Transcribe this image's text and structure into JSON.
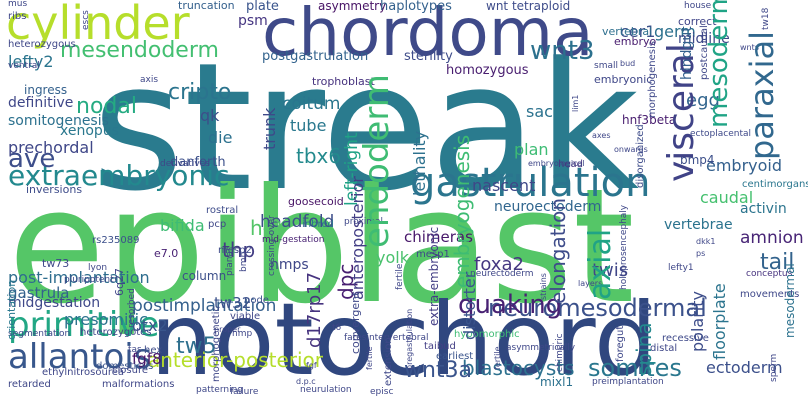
{
  "words": [
    {
      "text": "streak",
      "color": "#2a7b8e"
    },
    {
      "text": "epiblast",
      "color": "#55c667"
    },
    {
      "text": "notochord",
      "color": "#30477f"
    },
    {
      "text": "chordoma",
      "color": "#3f4a89"
    },
    {
      "text": "cylinder",
      "color": "#b6de2b"
    },
    {
      "text": "gastrulation",
      "color": "#2b758e"
    },
    {
      "text": "primitive",
      "color": "#22a784"
    },
    {
      "text": "allantois",
      "color": "#38578c"
    },
    {
      "text": "extraembryonic",
      "color": "#23898e"
    },
    {
      "text": "neuromesodermal",
      "color": "#3b518b"
    },
    {
      "text": "mesendoderm",
      "color": "#43bf71"
    },
    {
      "text": "visceral",
      "color": "#404387"
    },
    {
      "text": "endoderm",
      "color": "#3fbc73"
    },
    {
      "text": "wnt3",
      "color": "#2c718e"
    },
    {
      "text": "axial",
      "color": "#20a386"
    },
    {
      "text": "ave",
      "color": "#3d4e8a"
    },
    {
      "text": "nodal",
      "color": "#25ab82"
    },
    {
      "text": "paraxial",
      "color": "#31688e"
    },
    {
      "text": "mesoderm",
      "color": "#20a486"
    },
    {
      "text": "postimplantation",
      "color": "#35608d"
    },
    {
      "text": "somites",
      "color": "#2a778e"
    },
    {
      "text": "quaking",
      "color": "#482173"
    },
    {
      "text": "blastocysts",
      "color": "#2d718e"
    },
    {
      "text": "wnt3a",
      "color": "#3a548c"
    },
    {
      "text": "anterior-posterior",
      "color": "#b5de2b"
    },
    {
      "text": "tw5",
      "color": "#2e6f8e"
    },
    {
      "text": "post-implantation",
      "color": "#2e6d8e"
    },
    {
      "text": "embryogenesis",
      "color": "#3ebc73"
    },
    {
      "text": "elongation",
      "color": "#3e4c8a"
    },
    {
      "text": "cripto",
      "color": "#2b748e"
    },
    {
      "text": "tbx6",
      "color": "#238a8d"
    },
    {
      "text": "headfold",
      "color": "#3d4d8a"
    },
    {
      "text": "nascent",
      "color": "#3f4788"
    },
    {
      "text": "embryoid",
      "color": "#34608d"
    },
    {
      "text": "caudal",
      "color": "#45c06f"
    },
    {
      "text": "neuroectoderm",
      "color": "#31668e"
    },
    {
      "text": "chimeras",
      "color": "#48186a"
    },
    {
      "text": "vertebrae",
      "color": "#2b738e"
    },
    {
      "text": "amnion",
      "color": "#482576"
    },
    {
      "text": "tail",
      "color": "#33638d"
    },
    {
      "text": "ectoderm",
      "color": "#3c508b"
    },
    {
      "text": "spina",
      "color": "#23898e"
    },
    {
      "text": "twis",
      "color": "#404688"
    },
    {
      "text": "otx2",
      "color": "#39568c"
    },
    {
      "text": "midgestation",
      "color": "#3f4889"
    },
    {
      "text": "presomitic",
      "color": "#2c738e"
    },
    {
      "text": "gastrula",
      "color": "#34618d"
    },
    {
      "text": "foxa2",
      "color": "#453781"
    },
    {
      "text": "thp",
      "color": "#433d84"
    },
    {
      "text": "h-2",
      "color": "#54c568"
    },
    {
      "text": "dpc",
      "color": "#471e71"
    },
    {
      "text": "d17rp17",
      "color": "#46337f"
    },
    {
      "text": "tw32",
      "color": "#3b528b"
    },
    {
      "text": "fgf8",
      "color": "#481467"
    },
    {
      "text": "lethality",
      "color": "#2d718e"
    },
    {
      "text": "left-right",
      "color": "#20a386"
    },
    {
      "text": "anteroposterior",
      "color": "#433e85"
    },
    {
      "text": "coitum",
      "color": "#2a768e"
    },
    {
      "text": "plan",
      "color": "#3ebc74"
    },
    {
      "text": "sac",
      "color": "#2c728e"
    },
    {
      "text": "qk",
      "color": "#3c4f8a"
    },
    {
      "text": "die",
      "color": "#2c718e"
    },
    {
      "text": "trunk",
      "color": "#3e4989"
    },
    {
      "text": "tube",
      "color": "#2a788e"
    },
    {
      "text": "xenopus",
      "color": "#2a788e"
    },
    {
      "text": "prechordal",
      "color": "#3f4788"
    },
    {
      "text": "somitogenesis",
      "color": "#2c718e"
    },
    {
      "text": "definitive",
      "color": "#3f4788"
    },
    {
      "text": "lefty2",
      "color": "#2b758e"
    },
    {
      "text": "psm",
      "color": "#453581"
    },
    {
      "text": "plate",
      "color": "#3a548c"
    },
    {
      "text": "asymmetry",
      "color": "#471365"
    },
    {
      "text": "haplotypes",
      "color": "#34618d"
    },
    {
      "text": "wnt tetraploid",
      "color": "#3e4c8a"
    },
    {
      "text": "cer1",
      "color": "#3b528b"
    },
    {
      "text": "germ",
      "color": "#2c718e"
    },
    {
      "text": "egg",
      "color": "#32658e"
    },
    {
      "text": "hnf3beta",
      "color": "#481d6f"
    },
    {
      "text": "hindgut",
      "color": "#34618d"
    },
    {
      "text": "midline",
      "color": "#3e4989"
    },
    {
      "text": "column",
      "color": "#3c4f8a"
    },
    {
      "text": "yolk",
      "color": "#4ac16d"
    },
    {
      "text": "distorter",
      "color": "#3a548c"
    },
    {
      "text": "bifida",
      "color": "#3ebc74"
    },
    {
      "text": "polarity",
      "color": "#3d4d8a"
    },
    {
      "text": "floorplate",
      "color": "#2b748e"
    },
    {
      "text": "activin",
      "color": "#2b748e"
    },
    {
      "text": "mesodermal",
      "color": "#2c728e"
    },
    {
      "text": "nmps",
      "color": "#3f4788"
    },
    {
      "text": "ingress",
      "color": "#34618d"
    },
    {
      "text": "sterility",
      "color": "#3e4c8a"
    },
    {
      "text": "homozygous",
      "color": "#481d6f"
    },
    {
      "text": "postgastrulation",
      "color": "#33638d"
    },
    {
      "text": "truncation",
      "color": "#34608d"
    },
    {
      "text": "vertebral",
      "color": "#2e6f8e"
    },
    {
      "text": "correct",
      "color": "#404588"
    },
    {
      "text": "embryo",
      "color": "#481c6e"
    },
    {
      "text": "danforth",
      "color": "#3c508b"
    },
    {
      "text": "goosecoid",
      "color": "#471365"
    },
    {
      "text": "trophoblast",
      "color": "#46327e"
    },
    {
      "text": "rostral",
      "color": "#3e4c8a"
    },
    {
      "text": "mid-gestation",
      "color": "#482173"
    },
    {
      "text": "proximal",
      "color": "#3f4889"
    },
    {
      "text": "inbred",
      "color": "#2c718e"
    },
    {
      "text": "viable",
      "color": "#3f4788"
    },
    {
      "text": "mesp2",
      "color": "#3e4989"
    },
    {
      "text": "mesp1",
      "color": "#3f4788"
    },
    {
      "text": "convergent",
      "color": "#3f4889"
    },
    {
      "text": "extra-embryonic",
      "color": "#433e85"
    },
    {
      "text": "eomes",
      "color": "#3e4989"
    },
    {
      "text": "tw73",
      "color": "#3c508b"
    },
    {
      "text": "rs235089",
      "color": "#404588"
    },
    {
      "text": "6q27",
      "color": "#482173"
    },
    {
      "text": "e7.0",
      "color": "#3f4788"
    },
    {
      "text": "pcp",
      "color": "#3c508b"
    },
    {
      "text": "node",
      "color": "#46327e"
    },
    {
      "text": "head",
      "color": "#3c4f8a"
    },
    {
      "text": "bmp4",
      "color": "#2a768e"
    },
    {
      "text": "centimorgans",
      "color": "#3e4c8a"
    },
    {
      "text": "disorganized",
      "color": "#3f4889"
    },
    {
      "text": "morphogenesis",
      "color": "#3f4788"
    },
    {
      "text": "postcaudal",
      "color": "#3e4989"
    },
    {
      "text": "ectoplacental",
      "color": "#2a788e"
    },
    {
      "text": "orientation",
      "color": "#3f4788"
    },
    {
      "text": "heterozygotes",
      "color": "#3f4788"
    },
    {
      "text": "morphogenetic",
      "color": "#3f4889"
    },
    {
      "text": "extension",
      "color": "#433e85"
    },
    {
      "text": "taibud",
      "color": "#3a548c"
    },
    {
      "text": "earliest",
      "color": "#3ebc74"
    },
    {
      "text": "hypomorphic",
      "color": "#3f4889"
    },
    {
      "text": "foregut",
      "color": "#3f4788"
    },
    {
      "text": "distal",
      "color": "#3e4989"
    },
    {
      "text": "recessive",
      "color": "#3f4889"
    },
    {
      "text": "movements",
      "color": "#46327e"
    },
    {
      "text": "conceptus",
      "color": "#3e4c8a"
    },
    {
      "text": "hex",
      "color": "#3a548c"
    },
    {
      "text": "domesticus",
      "color": "#3f4788"
    },
    {
      "text": "closure",
      "color": "#3f4788"
    },
    {
      "text": "ethylnitrosourea",
      "color": "#3f4788"
    },
    {
      "text": "retarded",
      "color": "#3f4788"
    },
    {
      "text": "malformations",
      "color": "#3f4788"
    },
    {
      "text": "failure",
      "color": "#3f4889"
    },
    {
      "text": "patterning",
      "color": "#3f4788"
    },
    {
      "text": "neurulation",
      "color": "#3f4788"
    },
    {
      "text": "episc",
      "color": "#2c718e"
    },
    {
      "text": "mixl1",
      "color": "#3f4788"
    },
    {
      "text": "preimplantation",
      "color": "#3f4788"
    },
    {
      "text": "chimeric",
      "color": "#3f4788"
    },
    {
      "text": "resorbed",
      "color": "#3e4989"
    },
    {
      "text": "segmentation",
      "color": "#3f4788"
    },
    {
      "text": "ventral",
      "color": "#3f4788"
    },
    {
      "text": "lyon",
      "color": "#3f4788"
    },
    {
      "text": "pluripotent",
      "color": "#3e4c8a"
    },
    {
      "text": "inversions",
      "color": "#3f4788"
    },
    {
      "text": "derivatives",
      "color": "#3f4788"
    },
    {
      "text": "neurectoderm",
      "color": "#3f4788"
    },
    {
      "text": "mus",
      "color": "#3f4788"
    },
    {
      "text": "ribs",
      "color": "#3f4788"
    },
    {
      "text": "heterozygous",
      "color": "#3f4788"
    },
    {
      "text": "axis",
      "color": "#3f4788"
    },
    {
      "text": "escs",
      "color": "#3f4788"
    },
    {
      "text": "embryonic",
      "color": "#3f4788"
    },
    {
      "text": "tw18",
      "color": "#3f4788"
    },
    {
      "text": "house",
      "color": "#3f4788"
    },
    {
      "text": "bud",
      "color": "#3f4788"
    },
    {
      "text": "small",
      "color": "#3f4788"
    },
    {
      "text": "lim1",
      "color": "#3f4788"
    },
    {
      "text": "axes",
      "color": "#3f4788"
    },
    {
      "text": "onwards",
      "color": "#3f4788"
    },
    {
      "text": "embryological",
      "color": "#3f4788"
    },
    {
      "text": "sperm",
      "color": "#3f4788"
    },
    {
      "text": "dkk1",
      "color": "#3f4788"
    },
    {
      "text": "ps",
      "color": "#3f4788"
    },
    {
      "text": "lefty1",
      "color": "#3f4788"
    },
    {
      "text": "layers",
      "color": "#3f4788"
    },
    {
      "text": "t6",
      "color": "#3f4788"
    },
    {
      "text": "fatesintervertebral",
      "color": "#3f4788"
    },
    {
      "text": "proper",
      "color": "#3f4788"
    },
    {
      "text": "planar",
      "color": "#3f4788"
    },
    {
      "text": "bmp",
      "color": "#3f4788"
    },
    {
      "text": "crossing-over",
      "color": "#3f4788"
    },
    {
      "text": "holoprosencephaly",
      "color": "#3f4788"
    },
    {
      "text": "pregastrulation",
      "color": "#3f4788"
    },
    {
      "text": "fertile",
      "color": "#3f4788"
    },
    {
      "text": "asymmetrically",
      "color": "#3f4788"
    },
    {
      "text": "nmp",
      "color": "#3f4788"
    },
    {
      "text": "tas",
      "color": "#3f4788"
    },
    {
      "text": "fgf",
      "color": "#3f4788"
    },
    {
      "text": "d.p.c",
      "color": "#3f4788"
    },
    {
      "text": "strains",
      "color": "#3f4788"
    },
    {
      "text": "wnts",
      "color": "#3f4788"
    },
    {
      "text": "day",
      "color": "#3f4788"
    },
    {
      "text": "ectoderm",
      "color": "#3f4788"
    },
    {
      "text": "fgfs",
      "color": "#3f4788"
    }
  ]
}
